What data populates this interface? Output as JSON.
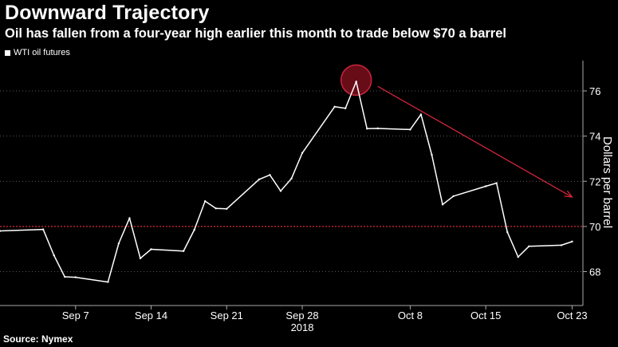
{
  "chart_data": {
    "type": "line",
    "title": "Downward Trajectory",
    "subtitle": "Oil has fallen from a four-year high earlier this month to trade below $70 a barrel",
    "ylabel": "Dollars per barrel",
    "xlabel": "",
    "source": "Source: Nymex",
    "year_label": "2018",
    "ylim": [
      66.5,
      77.2
    ],
    "yticks": [
      68,
      70,
      72,
      74,
      76
    ],
    "xticks": [
      {
        "label": "Sep 7",
        "date": "2018-09-07"
      },
      {
        "label": "Sep 14",
        "date": "2018-09-14"
      },
      {
        "label": "Sep 21",
        "date": "2018-09-21"
      },
      {
        "label": "Sep 28",
        "date": "2018-09-28"
      },
      {
        "label": "Oct 8",
        "date": "2018-10-08"
      },
      {
        "label": "Oct 15",
        "date": "2018-10-15"
      },
      {
        "label": "Oct 23",
        "date": "2018-10-23"
      }
    ],
    "reference_line": {
      "value": 70,
      "color": "#e0253a",
      "style": "dotted"
    },
    "grid": {
      "horizontal": true,
      "style": "dotted"
    },
    "legend_position": "top-left",
    "series": [
      {
        "name": "WTI oil futures",
        "color": "#ffffff",
        "points": [
          {
            "date": "2018-08-31",
            "value": 69.8
          },
          {
            "date": "2018-09-04",
            "value": 69.87
          },
          {
            "date": "2018-09-05",
            "value": 68.72
          },
          {
            "date": "2018-09-06",
            "value": 67.77
          },
          {
            "date": "2018-09-07",
            "value": 67.75
          },
          {
            "date": "2018-09-10",
            "value": 67.54
          },
          {
            "date": "2018-09-11",
            "value": 69.25
          },
          {
            "date": "2018-09-12",
            "value": 70.37
          },
          {
            "date": "2018-09-13",
            "value": 68.59
          },
          {
            "date": "2018-09-14",
            "value": 68.99
          },
          {
            "date": "2018-09-17",
            "value": 68.91
          },
          {
            "date": "2018-09-18",
            "value": 69.85
          },
          {
            "date": "2018-09-19",
            "value": 71.12
          },
          {
            "date": "2018-09-20",
            "value": 70.8
          },
          {
            "date": "2018-09-21",
            "value": 70.78
          },
          {
            "date": "2018-09-24",
            "value": 72.08
          },
          {
            "date": "2018-09-25",
            "value": 72.28
          },
          {
            "date": "2018-09-26",
            "value": 71.57
          },
          {
            "date": "2018-09-27",
            "value": 72.12
          },
          {
            "date": "2018-09-28",
            "value": 73.25
          },
          {
            "date": "2018-10-01",
            "value": 75.3
          },
          {
            "date": "2018-10-02",
            "value": 75.23
          },
          {
            "date": "2018-10-03",
            "value": 76.41
          },
          {
            "date": "2018-10-04",
            "value": 74.33
          },
          {
            "date": "2018-10-05",
            "value": 74.34
          },
          {
            "date": "2018-10-08",
            "value": 74.29
          },
          {
            "date": "2018-10-09",
            "value": 74.96
          },
          {
            "date": "2018-10-10",
            "value": 73.17
          },
          {
            "date": "2018-10-11",
            "value": 70.97
          },
          {
            "date": "2018-10-12",
            "value": 71.34
          },
          {
            "date": "2018-10-15",
            "value": 71.78
          },
          {
            "date": "2018-10-16",
            "value": 71.92
          },
          {
            "date": "2018-10-17",
            "value": 69.75
          },
          {
            "date": "2018-10-18",
            "value": 68.65
          },
          {
            "date": "2018-10-19",
            "value": 69.12
          },
          {
            "date": "2018-10-22",
            "value": 69.17
          },
          {
            "date": "2018-10-23",
            "value": 69.33
          }
        ]
      }
    ],
    "annotations": [
      {
        "type": "circle-highlight",
        "date": "2018-10-03",
        "value": 76.41,
        "color": "#8b1020"
      },
      {
        "type": "arrow",
        "from": {
          "date": "2018-10-05",
          "value": 76.2
        },
        "to": {
          "date": "2018-10-23",
          "value": 71.3
        },
        "color": "#d0253a"
      }
    ]
  }
}
